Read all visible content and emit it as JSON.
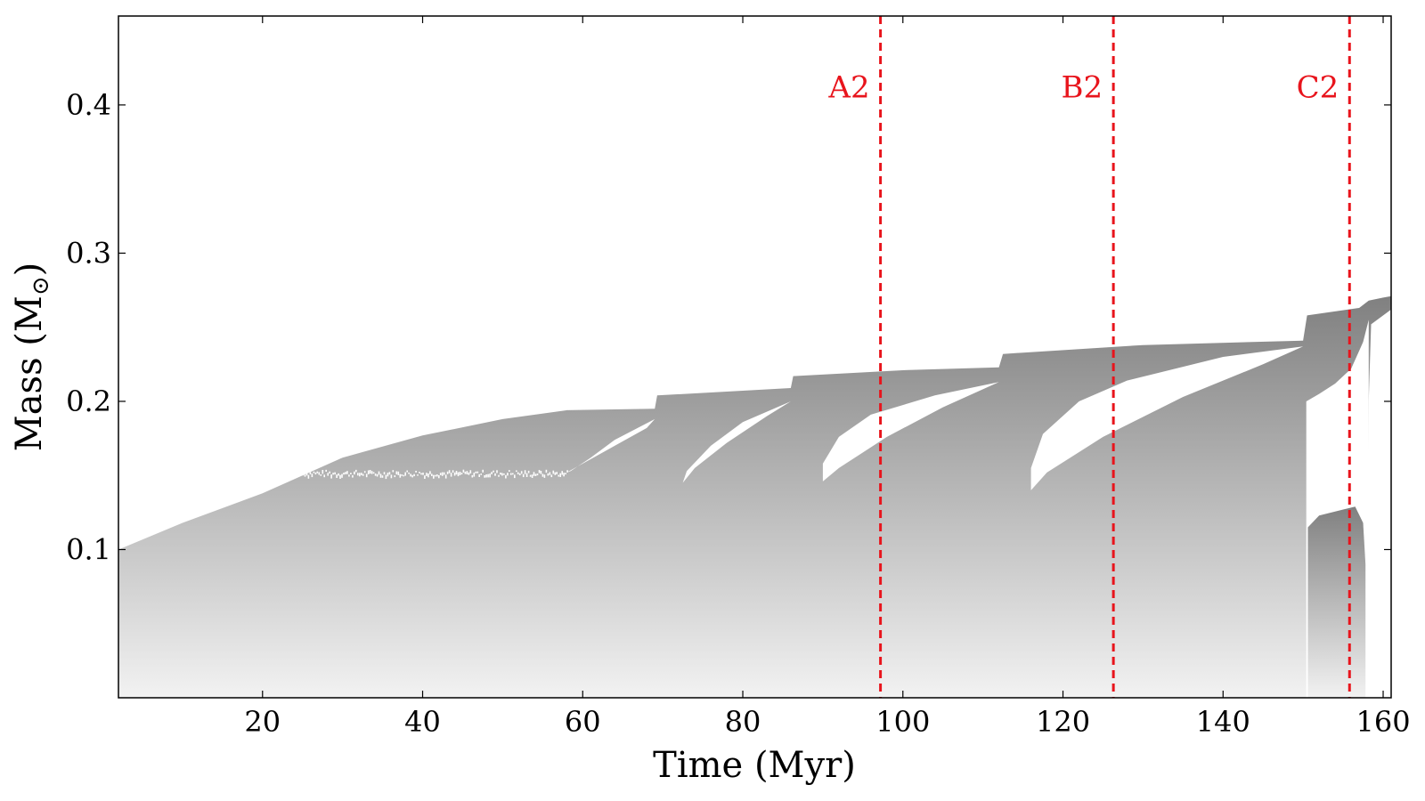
{
  "chart_data": {
    "type": "area",
    "title": "",
    "xlabel": "Time (Myr)",
    "ylabel": "Mass (M",
    "ylabel_sub": "⊙",
    "ylabel_close": ")",
    "xlim": [
      2,
      161
    ],
    "ylim": [
      0,
      0.46
    ],
    "xticks": [
      20,
      40,
      60,
      80,
      100,
      120,
      140,
      160
    ],
    "xtick_labels": [
      "20",
      "40",
      "60",
      "80",
      "100",
      "120",
      "140",
      "160"
    ],
    "yticks": [
      0.1,
      0.2,
      0.3,
      0.4
    ],
    "ytick_labels": [
      "0.1",
      "0.2",
      "0.3",
      "0.4"
    ],
    "grid": false,
    "markers": [
      {
        "label": "A2",
        "x": 97.2
      },
      {
        "label": "B2",
        "x": 126.3
      },
      {
        "label": "C2",
        "x": 155.8
      }
    ],
    "marker_color": "#e8141c",
    "region_color_top": "#808080",
    "region_color_bottom": "#f2f2f2",
    "envelope_top": [
      [
        2,
        0.1
      ],
      [
        10,
        0.118
      ],
      [
        20,
        0.138
      ],
      [
        30,
        0.162
      ],
      [
        40,
        0.177
      ],
      [
        50,
        0.188
      ],
      [
        58,
        0.194
      ],
      [
        69,
        0.195
      ],
      [
        69.3,
        0.204
      ],
      [
        86,
        0.209
      ],
      [
        86.3,
        0.217
      ],
      [
        100,
        0.221
      ],
      [
        112,
        0.223
      ],
      [
        112.5,
        0.232
      ],
      [
        130,
        0.238
      ],
      [
        150,
        0.241
      ],
      [
        150.5,
        0.258
      ],
      [
        157,
        0.263
      ],
      [
        158.2,
        0.268
      ],
      [
        160,
        0.27
      ],
      [
        161,
        0.271
      ]
    ],
    "envelope_bottom_right": [
      [
        161,
        0.262
      ],
      [
        158.5,
        0.252
      ],
      [
        158.2,
        0.2
      ],
      [
        158,
        0.0
      ]
    ],
    "white_gaps": [
      [
        [
          58,
          0.152
        ],
        [
          60,
          0.158
        ],
        [
          64,
          0.17
        ],
        [
          68,
          0.182
        ],
        [
          69,
          0.188
        ],
        [
          64,
          0.174
        ],
        [
          61,
          0.162
        ],
        [
          58.5,
          0.153
        ]
      ],
      [
        [
          72.5,
          0.145
        ],
        [
          74,
          0.155
        ],
        [
          78,
          0.172
        ],
        [
          83,
          0.19
        ],
        [
          86,
          0.2
        ],
        [
          80,
          0.186
        ],
        [
          76,
          0.17
        ],
        [
          73,
          0.153
        ]
      ],
      [
        [
          90,
          0.146
        ],
        [
          92,
          0.155
        ],
        [
          98,
          0.176
        ],
        [
          105,
          0.196
        ],
        [
          112,
          0.213
        ],
        [
          104,
          0.204
        ],
        [
          96,
          0.191
        ],
        [
          92,
          0.176
        ],
        [
          90,
          0.158
        ]
      ],
      [
        [
          116,
          0.14
        ],
        [
          118,
          0.152
        ],
        [
          125,
          0.176
        ],
        [
          135,
          0.203
        ],
        [
          145,
          0.225
        ],
        [
          150,
          0.237
        ],
        [
          140,
          0.23
        ],
        [
          128,
          0.214
        ],
        [
          122,
          0.2
        ],
        [
          117.5,
          0.178
        ],
        [
          116,
          0.155
        ]
      ]
    ],
    "late_gap": [
      [
        150.4,
        0.0
      ],
      [
        150.4,
        0.2
      ],
      [
        152,
        0.205
      ],
      [
        154,
        0.212
      ],
      [
        156,
        0.222
      ],
      [
        157.5,
        0.24
      ],
      [
        158.2,
        0.255
      ],
      [
        158.2,
        0.0
      ]
    ],
    "late_blob": [
      [
        150.6,
        0.0
      ],
      [
        150.6,
        0.115
      ],
      [
        152,
        0.123
      ],
      [
        155,
        0.127
      ],
      [
        156.5,
        0.129
      ],
      [
        157.5,
        0.118
      ],
      [
        157.8,
        0.09
      ],
      [
        157.8,
        0.0
      ]
    ],
    "noisy_strip": {
      "x_start": 25,
      "x_end": 58,
      "y": 0.152
    }
  }
}
